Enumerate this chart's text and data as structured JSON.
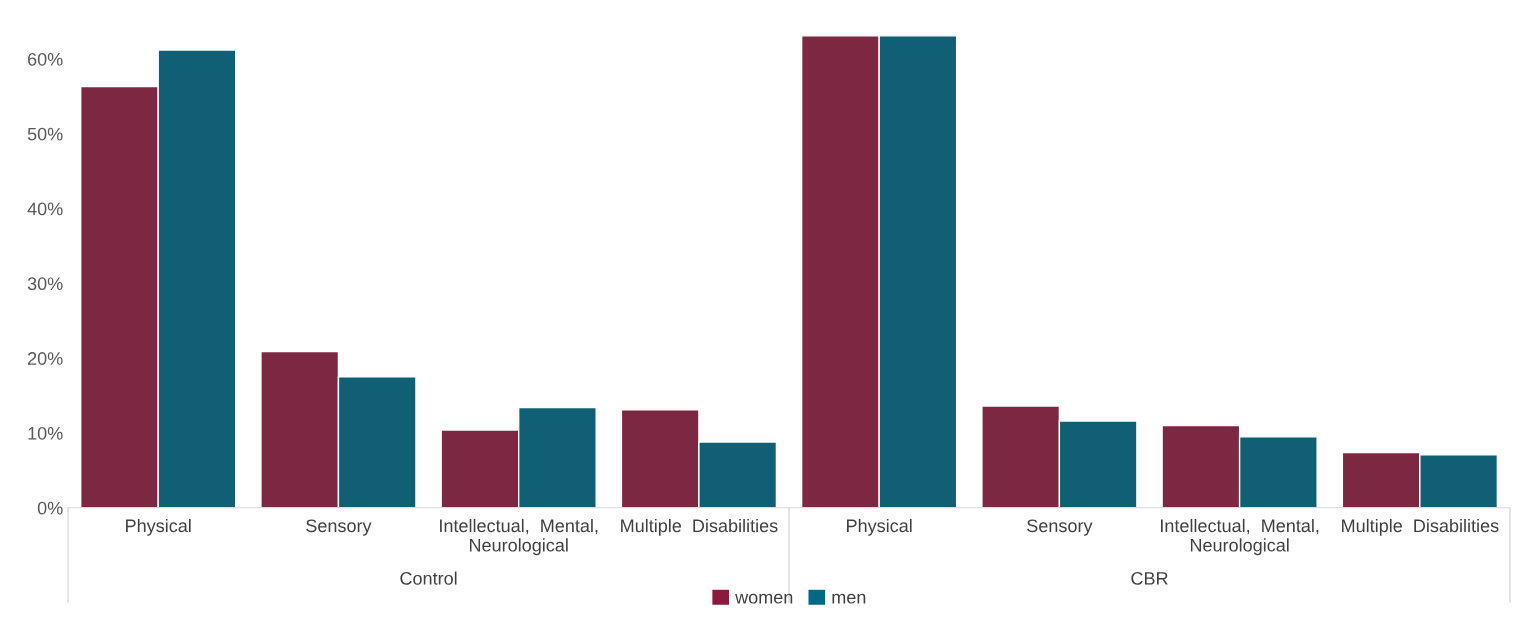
{
  "chart_data": {
    "type": "bar",
    "categories": [
      "Physical",
      "Sensory",
      "Intellectual,  Mental,\nNeurological",
      "Multiple  Disabilities",
      "Physical",
      "Sensory",
      "Intellectual,  Mental,\nNeurological",
      "Multiple  Disabilities"
    ],
    "series": [
      {
        "name": "women",
        "color": "#8b1a3c",
        "values": [
          56.3,
          20.9,
          10.4,
          13.1,
          63.1,
          13.6,
          11.0,
          7.4
        ]
      },
      {
        "name": "men",
        "color": "#006984",
        "values": [
          61.2,
          17.5,
          13.4,
          8.8,
          63.1,
          11.6,
          9.5,
          7.1
        ]
      }
    ],
    "annotations": [
      "Control",
      "CBR"
    ],
    "ylim": [
      0,
      63.1
    ],
    "yticks": [
      {
        "value": 0,
        "label": "0%"
      },
      {
        "value": 10,
        "label": "10%"
      },
      {
        "value": 20,
        "label": "20%"
      },
      {
        "value": 30,
        "label": "30%"
      },
      {
        "value": 40,
        "label": "40%"
      },
      {
        "value": 50,
        "label": "50%"
      },
      {
        "value": 60,
        "label": "60%"
      }
    ],
    "grid": false,
    "legend": "bottom"
  }
}
